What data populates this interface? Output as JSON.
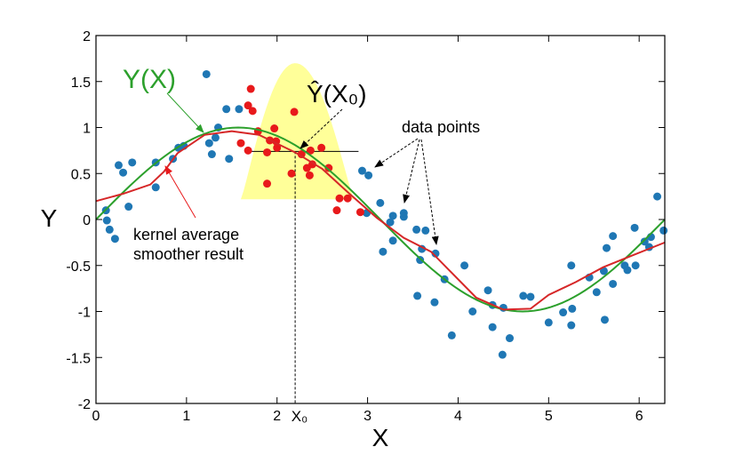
{
  "chart_data": {
    "type": "scatter",
    "xlabel": "X",
    "ylabel": "Y",
    "xlim": [
      0,
      6.283
    ],
    "ylim": [
      -2,
      2
    ],
    "xticks": [
      "0",
      "1",
      "2",
      "3",
      "4",
      "5",
      "6"
    ],
    "yticks": [
      "-2",
      "-1.5",
      "-1",
      "-0.5",
      "0",
      "0.5",
      "1",
      "1.5",
      "2"
    ],
    "grid": false,
    "x0": 2.2,
    "x0_label": "X₀",
    "yhat_value": 0.74,
    "kernel_window": [
      1.6,
      2.85
    ],
    "colors": {
      "blue": "#1f77b4",
      "red": "#e8191b",
      "green": "#2ca02c",
      "smoother": "#d62728",
      "kernel": "#ffff99"
    },
    "series": [
      {
        "kind": "points",
        "color": "blue",
        "points": [
          [
            0.11,
            0.1
          ],
          [
            0.12,
            -0.01
          ],
          [
            0.15,
            -0.11
          ],
          [
            0.21,
            -0.21
          ],
          [
            0.25,
            0.59
          ],
          [
            0.3,
            0.51
          ],
          [
            0.4,
            0.62
          ],
          [
            0.36,
            0.14
          ],
          [
            0.66,
            0.62
          ],
          [
            0.66,
            0.35
          ],
          [
            0.85,
            0.66
          ],
          [
            0.91,
            0.78
          ],
          [
            0.97,
            0.8
          ],
          [
            1.22,
            1.58
          ],
          [
            1.25,
            0.83
          ],
          [
            1.32,
            0.89
          ],
          [
            1.28,
            0.71
          ],
          [
            1.35,
            1.0
          ],
          [
            1.44,
            1.2
          ],
          [
            1.58,
            1.2
          ],
          [
            1.47,
            0.66
          ],
          [
            2.94,
            0.53
          ],
          [
            3.01,
            0.48
          ],
          [
            2.99,
            0.07
          ],
          [
            3.14,
            0.18
          ],
          [
            3.28,
            0.04
          ],
          [
            3.25,
            -0.03
          ],
          [
            3.4,
            0.07
          ],
          [
            3.4,
            0.03
          ],
          [
            3.28,
            -0.23
          ],
          [
            3.17,
            -0.35
          ],
          [
            3.54,
            -0.11
          ],
          [
            3.64,
            -0.12
          ],
          [
            3.6,
            -0.32
          ],
          [
            3.58,
            -0.44
          ],
          [
            3.75,
            -0.37
          ],
          [
            3.85,
            -0.65
          ],
          [
            3.55,
            -0.83
          ],
          [
            3.74,
            -0.9
          ],
          [
            4.07,
            -0.5
          ],
          [
            4.16,
            -1.0
          ],
          [
            3.93,
            -1.26
          ],
          [
            4.33,
            -0.77
          ],
          [
            4.38,
            -0.93
          ],
          [
            4.5,
            -0.96
          ],
          [
            4.38,
            -1.17
          ],
          [
            4.57,
            -1.29
          ],
          [
            4.49,
            -1.47
          ],
          [
            4.72,
            -0.83
          ],
          [
            4.8,
            -0.84
          ],
          [
            5.0,
            -1.12
          ],
          [
            5.16,
            -1.01
          ],
          [
            5.26,
            -0.97
          ],
          [
            5.25,
            -1.15
          ],
          [
            5.25,
            -0.5
          ],
          [
            5.45,
            -0.63
          ],
          [
            5.53,
            -0.79
          ],
          [
            5.61,
            -0.56
          ],
          [
            5.71,
            -0.7
          ],
          [
            5.62,
            -1.09
          ],
          [
            5.64,
            -0.31
          ],
          [
            5.71,
            -0.18
          ],
          [
            5.84,
            -0.5
          ],
          [
            5.87,
            -0.55
          ],
          [
            5.96,
            -0.5
          ],
          [
            5.95,
            -0.09
          ],
          [
            6.06,
            -0.24
          ],
          [
            6.13,
            -0.19
          ],
          [
            6.11,
            -0.3
          ],
          [
            6.2,
            0.25
          ],
          [
            6.27,
            -0.12
          ]
        ]
      },
      {
        "kind": "points",
        "color": "red",
        "points": [
          [
            1.71,
            1.42
          ],
          [
            1.68,
            1.24
          ],
          [
            1.73,
            1.18
          ],
          [
            1.6,
            0.83
          ],
          [
            1.68,
            0.75
          ],
          [
            1.79,
            0.96
          ],
          [
            1.97,
            0.99
          ],
          [
            1.92,
            0.86
          ],
          [
            1.99,
            0.85
          ],
          [
            2.0,
            0.78
          ],
          [
            1.89,
            0.73
          ],
          [
            1.89,
            0.39
          ],
          [
            2.19,
            1.17
          ],
          [
            2.16,
            0.5
          ],
          [
            2.27,
            0.71
          ],
          [
            2.37,
            0.75
          ],
          [
            2.49,
            0.78
          ],
          [
            2.33,
            0.56
          ],
          [
            2.39,
            0.6
          ],
          [
            2.36,
            0.48
          ],
          [
            2.57,
            0.56
          ],
          [
            2.69,
            0.23
          ],
          [
            2.78,
            0.23
          ],
          [
            2.66,
            0.1
          ],
          [
            2.92,
            0.08
          ]
        ]
      },
      {
        "kind": "line",
        "name": "Y(X)",
        "color": "green",
        "function": "sin"
      },
      {
        "kind": "line",
        "name": "kernel average smoother result",
        "color": "smoother",
        "x": [
          0,
          0.3,
          0.6,
          0.75,
          0.9,
          1.2,
          1.5,
          1.8,
          2.2,
          2.5,
          2.8,
          3.1,
          3.4,
          3.7,
          3.9,
          4.2,
          4.5,
          4.8,
          5.0,
          5.3,
          5.6,
          5.9,
          6.283
        ],
        "y": [
          0.2,
          0.28,
          0.38,
          0.52,
          0.72,
          0.92,
          0.96,
          0.92,
          0.73,
          0.55,
          0.28,
          0.02,
          -0.2,
          -0.35,
          -0.55,
          -0.85,
          -0.98,
          -0.97,
          -0.82,
          -0.68,
          -0.52,
          -0.4,
          -0.25
        ]
      }
    ],
    "annotations": {
      "yx": "Y(X)",
      "yhat": "Ŷ(X₀)",
      "data_points": "data points",
      "smoother_l1": "kernel average",
      "smoother_l2": "smoother result"
    }
  }
}
